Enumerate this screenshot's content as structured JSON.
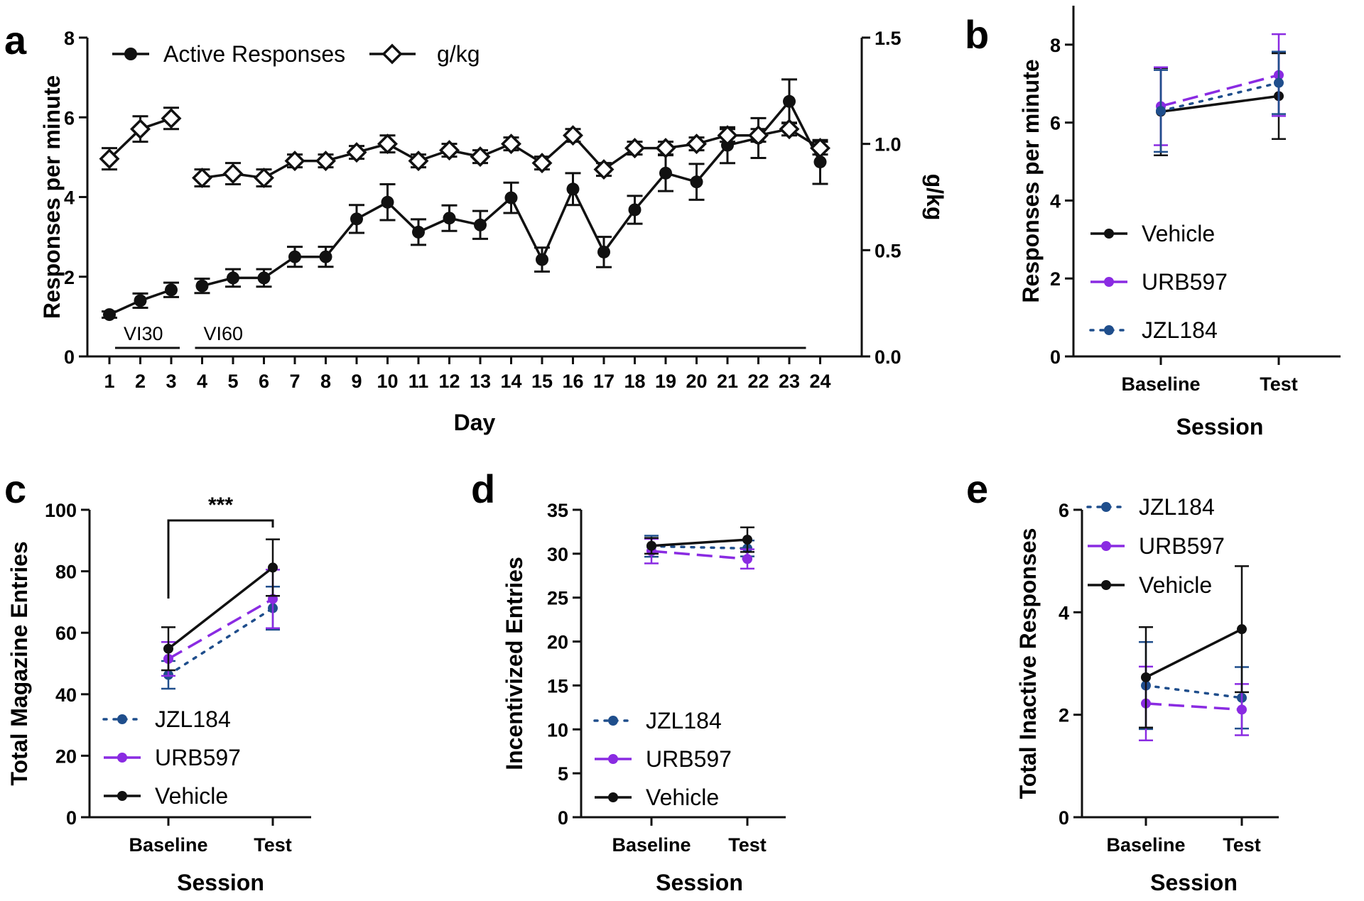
{
  "colors": {
    "vehicle": "#111111",
    "urb597": "#8a2be2",
    "jzl184": "#1f4e8c",
    "axis": "#111111"
  },
  "chart_data": [
    {
      "panel": "a",
      "type": "line",
      "xlabel": "Day",
      "ylabel": "Responses per minute",
      "y2label": "g/kg",
      "ylim": [
        0,
        8
      ],
      "y2lim": [
        0,
        1.5
      ],
      "yticks": [
        "0",
        "2",
        "4",
        "6",
        "8"
      ],
      "y2ticks": [
        "0.0",
        "0.5",
        "1.0",
        "1.5"
      ],
      "categories": [
        "1",
        "2",
        "3",
        "4",
        "5",
        "6",
        "7",
        "8",
        "9",
        "10",
        "11",
        "12",
        "13",
        "14",
        "15",
        "16",
        "17",
        "18",
        "19",
        "20",
        "21",
        "22",
        "23",
        "24"
      ],
      "annotations": [
        {
          "text": "VI30",
          "from": 1,
          "to": 3
        },
        {
          "text": "VI60",
          "from": 4,
          "to": 24
        }
      ],
      "series": [
        {
          "name": "Active Responses",
          "axis": "left",
          "marker": "circle",
          "segments": [
            [
              1,
              3
            ],
            [
              4,
              24
            ]
          ],
          "values": [
            1.05,
            1.4,
            1.67,
            1.77,
            1.97,
            1.97,
            2.5,
            2.5,
            3.45,
            3.87,
            3.12,
            3.47,
            3.3,
            3.98,
            2.43,
            4.2,
            2.62,
            3.68,
            4.6,
            4.38,
            5.3,
            5.48,
            6.4,
            4.88
          ],
          "errors": [
            0.08,
            0.18,
            0.18,
            0.18,
            0.22,
            0.22,
            0.25,
            0.25,
            0.35,
            0.45,
            0.32,
            0.32,
            0.35,
            0.38,
            0.3,
            0.4,
            0.38,
            0.35,
            0.45,
            0.45,
            0.45,
            0.5,
            0.55,
            0.55
          ]
        },
        {
          "name": "g/kg",
          "axis": "right",
          "marker": "diamond",
          "segments": [
            [
              1,
              3
            ],
            [
              4,
              24
            ]
          ],
          "values": [
            0.93,
            1.07,
            1.12,
            0.84,
            0.86,
            0.84,
            0.92,
            0.92,
            0.96,
            1.0,
            0.92,
            0.97,
            0.94,
            1.0,
            0.91,
            1.04,
            0.88,
            0.98,
            0.98,
            1.0,
            1.04,
            1.04,
            1.07,
            0.98
          ],
          "errors": [
            0.05,
            0.06,
            0.05,
            0.04,
            0.05,
            0.04,
            0.03,
            0.03,
            0.03,
            0.04,
            0.03,
            0.03,
            0.03,
            0.03,
            0.03,
            0.03,
            0.03,
            0.03,
            0.03,
            0.03,
            0.03,
            0.03,
            0.03,
            0.03
          ]
        }
      ]
    },
    {
      "panel": "b",
      "type": "line",
      "xlabel": "Session",
      "ylabel": "Responses per minute",
      "ylim": [
        0,
        9
      ],
      "yticks": [
        "0",
        "2",
        "4",
        "6",
        "8"
      ],
      "categories": [
        "Baseline",
        "Test"
      ],
      "series": [
        {
          "name": "Vehicle",
          "style": "solid",
          "color": "#111111",
          "values": [
            6.28,
            6.68
          ],
          "errors": [
            1.12,
            1.1
          ]
        },
        {
          "name": "URB597",
          "style": "dashed",
          "color": "#8a2be2",
          "values": [
            6.42,
            7.22
          ],
          "errors": [
            1.0,
            1.05
          ]
        },
        {
          "name": "JZL184",
          "style": "dotted",
          "color": "#1f4e8c",
          "values": [
            6.3,
            7.02
          ],
          "errors": [
            1.05,
            0.8
          ]
        }
      ],
      "legend": [
        "Vehicle",
        "URB597",
        "JZL184"
      ]
    },
    {
      "panel": "c",
      "type": "line",
      "xlabel": "Session",
      "ylabel": "Total Magazine Entries",
      "ylim": [
        0,
        100
      ],
      "yticks": [
        "0",
        "20",
        "40",
        "60",
        "80",
        "100"
      ],
      "categories": [
        "Baseline",
        "Test"
      ],
      "significance": {
        "text": "***",
        "from": "Baseline",
        "to": "Test"
      },
      "series": [
        {
          "name": "JZL184",
          "style": "dotted",
          "color": "#1f4e8c",
          "values": [
            46.3,
            68.0
          ],
          "errors": [
            4.5,
            7.0
          ]
        },
        {
          "name": "URB597",
          "style": "dashed",
          "color": "#8a2be2",
          "values": [
            51.5,
            71.0
          ],
          "errors": [
            5.5,
            9.5
          ]
        },
        {
          "name": "Vehicle",
          "style": "solid",
          "color": "#111111",
          "values": [
            54.8,
            81.2
          ],
          "errors": [
            7.0,
            9.2
          ]
        }
      ],
      "legend": [
        "JZL184",
        "URB597",
        "Vehicle"
      ]
    },
    {
      "panel": "d",
      "type": "line",
      "xlabel": "Session",
      "ylabel": "Incentivized Entries",
      "ylim": [
        0,
        35
      ],
      "yticks": [
        "0",
        "5",
        "10",
        "15",
        "20",
        "25",
        "30",
        "35"
      ],
      "categories": [
        "Baseline",
        "Test"
      ],
      "series": [
        {
          "name": "JZL184",
          "style": "dotted",
          "color": "#1f4e8c",
          "values": [
            30.85,
            30.6
          ],
          "errors": [
            1.2,
            0.9
          ]
        },
        {
          "name": "URB597",
          "style": "dashed",
          "color": "#8a2be2",
          "values": [
            30.3,
            29.4
          ],
          "errors": [
            1.4,
            1.1
          ]
        },
        {
          "name": "Vehicle",
          "style": "solid",
          "color": "#111111",
          "values": [
            30.9,
            31.6
          ],
          "errors": [
            0.9,
            1.4
          ]
        }
      ],
      "legend": [
        "JZL184",
        "URB597",
        "Vehicle"
      ]
    },
    {
      "panel": "e",
      "type": "line",
      "xlabel": "Session",
      "ylabel": "Total Inactive Responses",
      "ylim": [
        0,
        6
      ],
      "yticks": [
        "0",
        "2",
        "4",
        "6"
      ],
      "categories": [
        "Baseline",
        "Test"
      ],
      "series": [
        {
          "name": "JZL184",
          "style": "dotted",
          "color": "#1f4e8c",
          "values": [
            2.57,
            2.33
          ],
          "errors": [
            0.85,
            0.6
          ]
        },
        {
          "name": "URB597",
          "style": "dashed",
          "color": "#8a2be2",
          "values": [
            2.22,
            2.1
          ],
          "errors": [
            0.72,
            0.5
          ]
        },
        {
          "name": "Vehicle",
          "style": "solid",
          "color": "#111111",
          "values": [
            2.73,
            3.67
          ],
          "errors": [
            0.98,
            1.23
          ]
        }
      ],
      "legend": [
        "JZL184",
        "URB597",
        "Vehicle"
      ]
    }
  ]
}
